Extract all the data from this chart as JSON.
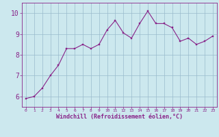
{
  "x": [
    0,
    1,
    2,
    3,
    4,
    5,
    6,
    7,
    8,
    9,
    10,
    11,
    12,
    13,
    14,
    15,
    16,
    17,
    18,
    19,
    20,
    21,
    22,
    23
  ],
  "y": [
    5.9,
    6.0,
    6.4,
    7.0,
    7.5,
    8.3,
    8.3,
    8.5,
    8.3,
    8.5,
    9.2,
    9.65,
    9.05,
    8.8,
    9.5,
    10.1,
    9.5,
    9.5,
    9.3,
    8.65,
    8.8,
    8.5,
    8.65,
    8.9
  ],
  "line_color": "#882288",
  "marker_color": "#882288",
  "bg_color": "#cce8ee",
  "grid_color": "#99bbcc",
  "xlabel": "Windchill (Refroidissement éolien,°C)",
  "xlim": [
    -0.5,
    23.5
  ],
  "ylim": [
    5.5,
    10.5
  ],
  "yticks": [
    6,
    7,
    8,
    9,
    10
  ],
  "xticks": [
    0,
    1,
    2,
    3,
    4,
    5,
    6,
    7,
    8,
    9,
    10,
    11,
    12,
    13,
    14,
    15,
    16,
    17,
    18,
    19,
    20,
    21,
    22,
    23
  ],
  "xlabel_color": "#882288",
  "tick_color": "#882288",
  "spine_color": "#882288",
  "ylabel_fontsize": 7,
  "xlabel_fontsize": 6,
  "xtick_fontsize": 4.5,
  "ytick_fontsize": 7
}
